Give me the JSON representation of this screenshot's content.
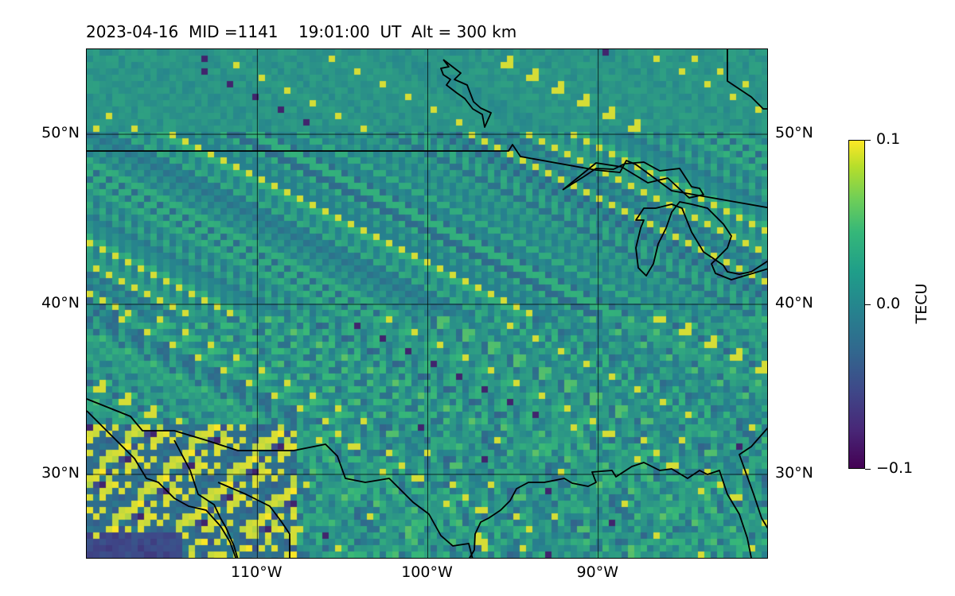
{
  "map": {
    "title": "2023-04-16  MID =1141    19:01:00  UT  Alt = 300 km",
    "projection": "plate-carree",
    "extent": {
      "lon_min": -120,
      "lon_max": -80,
      "lat_min": 25,
      "lat_max": 55
    },
    "lat_ticks": [
      {
        "value": 50,
        "label": "50°N"
      },
      {
        "value": 40,
        "label": "40°N"
      },
      {
        "value": 30,
        "label": "30°N"
      }
    ],
    "lon_ticks": [
      {
        "value": -110,
        "label": "110°W"
      },
      {
        "value": -100,
        "label": "100°W"
      },
      {
        "value": -90,
        "label": "90°W"
      }
    ],
    "gridlines": true,
    "features": [
      "coastlines",
      "country-borders",
      "great-lakes"
    ],
    "field": {
      "quantity": "TEC anomaly",
      "colormap": "viridis",
      "vmin": -0.1,
      "vmax": 0.1
    }
  },
  "colorbar": {
    "label": "TECU",
    "ticks": [
      {
        "value": 0.1,
        "label": "0.1"
      },
      {
        "value": 0.0,
        "label": "0.0"
      },
      {
        "value": -0.1,
        "label": "−0.1"
      }
    ],
    "colors": [
      "#440154",
      "#3e4989",
      "#26828e",
      "#35b779",
      "#fde725"
    ]
  }
}
